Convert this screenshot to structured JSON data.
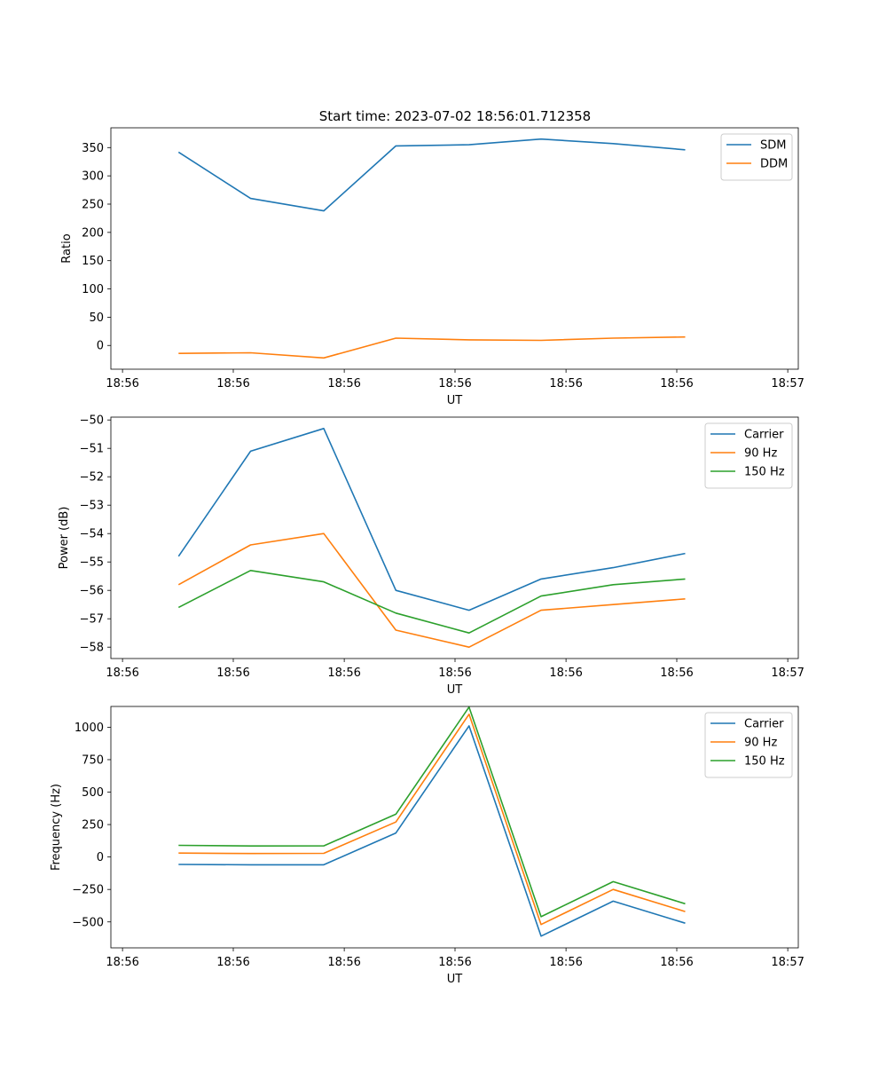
{
  "figure_title": "Start time: 2023-07-02 18:56:01.712358",
  "chart_data": [
    {
      "type": "line",
      "xlabel": "UT",
      "ylabel": "Ratio",
      "xlim": [
        0,
        6.2
      ],
      "x_ticks": [
        0.105,
        1.104,
        2.105,
        3.104,
        4.105,
        5.104,
        6.105
      ],
      "x_tick_labels": [
        "18:56",
        "18:56",
        "18:56",
        "18:56",
        "18:56",
        "18:56",
        "18:57"
      ],
      "ylim": [
        -42,
        385
      ],
      "y_ticks": [
        0,
        50,
        100,
        150,
        200,
        250,
        300,
        350
      ],
      "y_tick_labels": [
        "0",
        "50",
        "100",
        "150",
        "200",
        "250",
        "300",
        "350"
      ],
      "legend_position": "top-right",
      "x": [
        0.61,
        1.26,
        1.92,
        2.57,
        3.23,
        3.88,
        4.53,
        5.18
      ],
      "series": [
        {
          "name": "SDM",
          "color": "#1f77b4",
          "values": [
            342,
            260,
            238,
            353,
            355,
            365,
            357,
            346
          ]
        },
        {
          "name": "DDM",
          "color": "#ff7f0e",
          "values": [
            -14,
            -13,
            -22,
            13,
            10,
            9,
            13,
            15
          ]
        }
      ]
    },
    {
      "type": "line",
      "xlabel": "UT",
      "ylabel": "Power (dB)",
      "xlim": [
        0,
        6.2
      ],
      "x_ticks": [
        0.105,
        1.104,
        2.105,
        3.104,
        4.105,
        5.104,
        6.105
      ],
      "x_tick_labels": [
        "18:56",
        "18:56",
        "18:56",
        "18:56",
        "18:56",
        "18:56",
        "18:57"
      ],
      "ylim": [
        -58.4,
        -49.9
      ],
      "y_ticks": [
        -50,
        -51,
        -52,
        -53,
        -54,
        -55,
        -56,
        -57,
        -58
      ],
      "y_tick_labels": [
        "−50",
        "−51",
        "−52",
        "−53",
        "−54",
        "−55",
        "−56",
        "−57",
        "−58"
      ],
      "legend_position": "top-right",
      "x": [
        0.61,
        1.26,
        1.92,
        2.57,
        3.23,
        3.88,
        4.53,
        5.18
      ],
      "series": [
        {
          "name": "Carrier",
          "color": "#1f77b4",
          "values": [
            -54.8,
            -51.1,
            -50.3,
            -56.0,
            -56.7,
            -55.6,
            -55.2,
            -54.7
          ]
        },
        {
          "name": "90 Hz",
          "color": "#ff7f0e",
          "values": [
            -55.8,
            -54.4,
            -54.0,
            -57.4,
            -58.0,
            -56.7,
            -56.5,
            -56.3
          ]
        },
        {
          "name": "150 Hz",
          "color": "#2ca02c",
          "values": [
            -56.6,
            -55.3,
            -55.7,
            -56.8,
            -57.5,
            -56.2,
            -55.8,
            -55.6
          ]
        }
      ]
    },
    {
      "type": "line",
      "xlabel": "UT",
      "ylabel": "Frequency (Hz)",
      "xlim": [
        0,
        6.2
      ],
      "x_ticks": [
        0.105,
        1.104,
        2.105,
        3.104,
        4.105,
        5.104,
        6.105
      ],
      "x_tick_labels": [
        "18:56",
        "18:56",
        "18:56",
        "18:56",
        "18:56",
        "18:56",
        "18:57"
      ],
      "ylim": [
        -700,
        1160
      ],
      "y_ticks": [
        1000,
        750,
        500,
        250,
        0,
        -250,
        -500
      ],
      "y_tick_labels": [
        "1000",
        "750",
        "500",
        "250",
        "0",
        "−250",
        "−500"
      ],
      "legend_position": "top-right",
      "x": [
        0.61,
        1.26,
        1.92,
        2.57,
        3.23,
        3.88,
        4.53,
        5.18
      ],
      "series": [
        {
          "name": "Carrier",
          "color": "#1f77b4",
          "values": [
            -57,
            -60,
            -60,
            185,
            1010,
            -610,
            -340,
            -510
          ]
        },
        {
          "name": "90 Hz",
          "color": "#ff7f0e",
          "values": [
            30,
            27,
            28,
            270,
            1100,
            -520,
            -250,
            -420
          ]
        },
        {
          "name": "150 Hz",
          "color": "#2ca02c",
          "values": [
            90,
            85,
            86,
            330,
            1155,
            -460,
            -190,
            -360
          ]
        }
      ]
    }
  ]
}
